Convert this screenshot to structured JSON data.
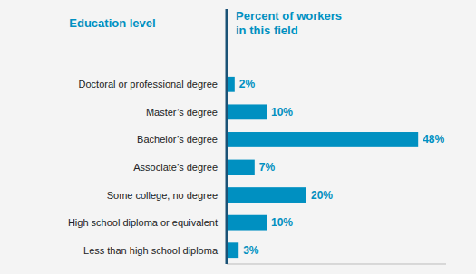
{
  "chart_data": {
    "type": "bar",
    "orientation": "horizontal",
    "ylabel": "Education level",
    "xlabel": "Percent of workers\nin this field",
    "categories": [
      "Doctoral or professional degree",
      "Master’s degree",
      "Bachelor’s degree",
      "Associate’s degree",
      "Some college, no degree",
      "High school diploma or equivalent",
      "Less than high school diploma"
    ],
    "values": [
      2,
      10,
      48,
      7,
      20,
      10,
      3
    ],
    "value_labels": [
      "2%",
      "10%",
      "48%",
      "7%",
      "20%",
      "10%",
      "3%"
    ],
    "color": "#0090c1",
    "xlim": [
      0,
      55
    ],
    "grid": false,
    "data_labels": true,
    "tick_labels": "y"
  }
}
